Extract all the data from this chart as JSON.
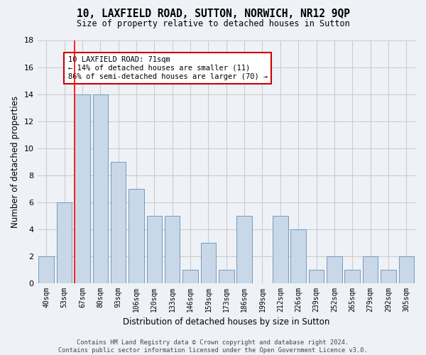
{
  "title": "10, LAXFIELD ROAD, SUTTON, NORWICH, NR12 9QP",
  "subtitle": "Size of property relative to detached houses in Sutton",
  "xlabel": "Distribution of detached houses by size in Sutton",
  "ylabel": "Number of detached properties",
  "categories": [
    "40sqm",
    "53sqm",
    "67sqm",
    "80sqm",
    "93sqm",
    "106sqm",
    "120sqm",
    "133sqm",
    "146sqm",
    "159sqm",
    "173sqm",
    "186sqm",
    "199sqm",
    "212sqm",
    "226sqm",
    "239sqm",
    "252sqm",
    "265sqm",
    "279sqm",
    "292sqm",
    "305sqm"
  ],
  "values": [
    2,
    6,
    14,
    14,
    9,
    7,
    5,
    5,
    1,
    3,
    1,
    5,
    0,
    5,
    4,
    1,
    2,
    1,
    2,
    1,
    2
  ],
  "bar_color": "#c8d8e8",
  "bar_edge_color": "#7799bb",
  "bar_edge_width": 0.7,
  "red_line_x": 1.575,
  "annotation_text": "10 LAXFIELD ROAD: 71sqm\n← 14% of detached houses are smaller (11)\n86% of semi-detached houses are larger (70) →",
  "annotation_box_color": "#ffffff",
  "annotation_box_edge": "#cc0000",
  "ylim": [
    0,
    18
  ],
  "yticks": [
    0,
    2,
    4,
    6,
    8,
    10,
    12,
    14,
    16,
    18
  ],
  "grid_color": "#cccccc",
  "bg_color": "#eef2f7",
  "footer": "Contains HM Land Registry data © Crown copyright and database right 2024.\nContains public sector information licensed under the Open Government Licence v3.0."
}
